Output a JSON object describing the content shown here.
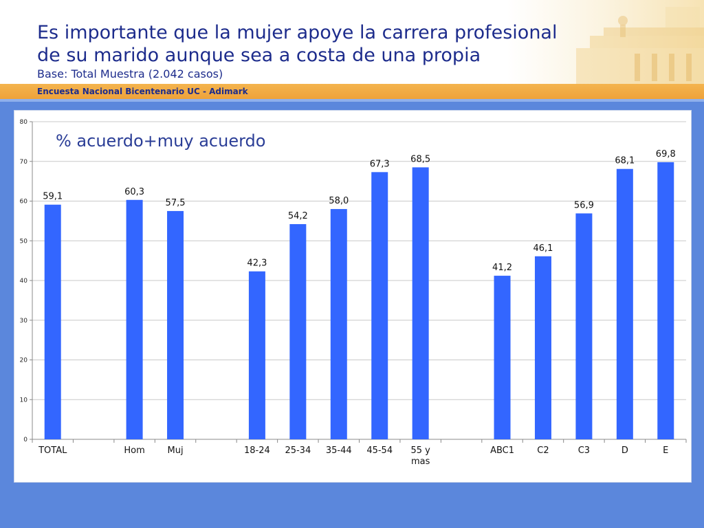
{
  "header": {
    "title_line1": "Es importante que la mujer apoye la carrera profesional",
    "title_line2": "de su marido aunque sea a costa de una propia",
    "subtitle": "Base: Total Muestra (2.042 casos)",
    "survey": "Encuesta Nacional Bicentenario UC - Adimark"
  },
  "colors": {
    "bar": "#3366ff",
    "background": "#5b87dc",
    "accent_orange": "#eea23a",
    "title": "#1d2c8c"
  },
  "chart_data": {
    "type": "bar",
    "series_label": "% acuerdo+muy acuerdo",
    "ylim": [
      0,
      80
    ],
    "yticks": [
      0,
      10,
      20,
      30,
      40,
      50,
      60,
      70,
      80
    ],
    "grid": true,
    "legend": "none",
    "categories": [
      {
        "label": "TOTAL",
        "value": 59.1,
        "text": "59,1"
      },
      {
        "label": "",
        "value": null,
        "text": ""
      },
      {
        "label": "Hom",
        "value": 60.3,
        "text": "60,3"
      },
      {
        "label": "Muj",
        "value": 57.5,
        "text": "57,5"
      },
      {
        "label": "",
        "value": null,
        "text": ""
      },
      {
        "label": "18-24",
        "value": 42.3,
        "text": "42,3"
      },
      {
        "label": "25-34",
        "value": 54.2,
        "text": "54,2"
      },
      {
        "label": "35-44",
        "value": 58.0,
        "text": "58,0"
      },
      {
        "label": "45-54",
        "value": 67.3,
        "text": "67,3"
      },
      {
        "label": "55 y\nmas",
        "value": 68.5,
        "text": "68,5"
      },
      {
        "label": "",
        "value": null,
        "text": ""
      },
      {
        "label": "ABC1",
        "value": 41.2,
        "text": "41,2"
      },
      {
        "label": "C2",
        "value": 46.1,
        "text": "46,1"
      },
      {
        "label": "C3",
        "value": 56.9,
        "text": "56,9"
      },
      {
        "label": "D",
        "value": 68.1,
        "text": "68,1"
      },
      {
        "label": "E",
        "value": 69.8,
        "text": "69,8"
      }
    ]
  }
}
